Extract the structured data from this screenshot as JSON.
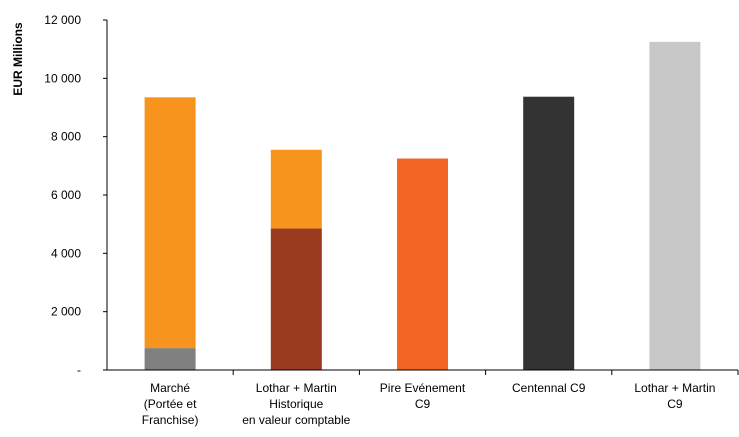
{
  "chart_data": {
    "type": "bar",
    "stacked": true,
    "ylabel": "EUR Millions",
    "ylim": [
      0,
      12000
    ],
    "yticks": [
      {
        "value": 0,
        "label": "-"
      },
      {
        "value": 2000,
        "label": "2 000"
      },
      {
        "value": 4000,
        "label": "4 000"
      },
      {
        "value": 6000,
        "label": "6 000"
      },
      {
        "value": 8000,
        "label": "8 000"
      },
      {
        "value": 10000,
        "label": "10 000"
      },
      {
        "value": 12000,
        "label": "12 000"
      }
    ],
    "grid": false,
    "legend": "none",
    "categories": [
      {
        "lines": [
          "Marché",
          "(Portée et",
          "Franchise)"
        ],
        "segments": [
          {
            "value": 750,
            "color": "#808080"
          },
          {
            "value": 8600,
            "color": "#F7941D"
          }
        ]
      },
      {
        "lines": [
          "Lothar + Martin",
          "Historique",
          "en valeur comptable"
        ],
        "segments": [
          {
            "value": 4850,
            "color": "#9A3A1E"
          },
          {
            "value": 2700,
            "color": "#F7941D"
          }
        ]
      },
      {
        "lines": [
          "Pire Evénement",
          "C9"
        ],
        "segments": [
          {
            "value": 7250,
            "color": "#F26522"
          }
        ]
      },
      {
        "lines": [
          "Centennal C9"
        ],
        "segments": [
          {
            "value": 9370,
            "color": "#333333"
          }
        ]
      },
      {
        "lines": [
          "Lothar + Martin",
          "C9"
        ],
        "segments": [
          {
            "value": 11250,
            "color": "#C8C8C8"
          }
        ]
      }
    ]
  }
}
